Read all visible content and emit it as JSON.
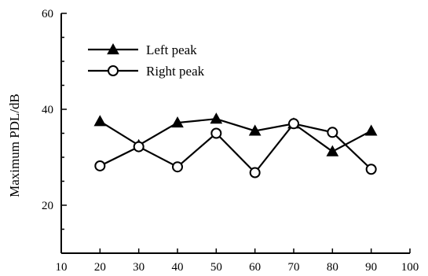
{
  "chart_data": {
    "type": "line",
    "title": "",
    "xlabel": "",
    "ylabel": "Maximum PDL/dB",
    "xlim": [
      10,
      100
    ],
    "ylim": [
      10,
      60
    ],
    "xticks": [
      10,
      20,
      30,
      40,
      50,
      60,
      70,
      80,
      90,
      100
    ],
    "yticks": [
      20,
      40,
      60
    ],
    "grid": false,
    "legend_position": "top-left",
    "series": [
      {
        "name": "Left peak",
        "marker": "filled-triangle",
        "color": "#000000",
        "x": [
          20,
          30,
          40,
          50,
          60,
          70,
          80,
          90
        ],
        "y": [
          37.5,
          32.5,
          37.2,
          38.0,
          35.5,
          37.0,
          31.2,
          35.5
        ]
      },
      {
        "name": "Right peak",
        "marker": "open-circle",
        "color": "#000000",
        "x": [
          20,
          30,
          40,
          50,
          60,
          70,
          80,
          90
        ],
        "y": [
          28.2,
          32.2,
          28.0,
          35.0,
          26.8,
          37.0,
          35.2,
          27.5
        ]
      }
    ]
  }
}
